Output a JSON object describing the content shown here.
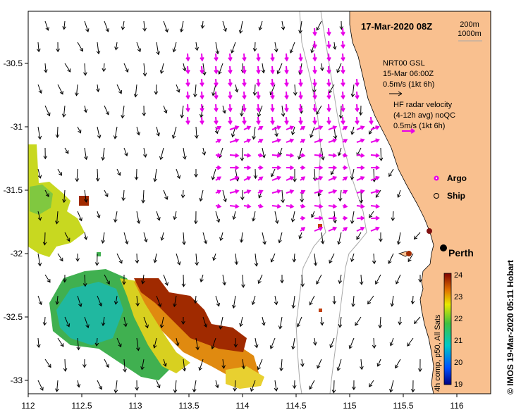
{
  "map": {
    "date_title": "17-Mar-2020 08Z",
    "isobath_legend": [
      "200m",
      "1000m"
    ],
    "model_legend": [
      "NRT00 GSL",
      "15-Mar 06:00Z",
      "0.5m/s (1kt 6h)"
    ],
    "radar_legend": [
      "HF radar velocity",
      "(4-12h avg) noQC",
      "0.5m/s (1kt 6h)"
    ],
    "argo_label": "Argo",
    "ship_label": "Ship",
    "place_label": "Perth",
    "credit": "©  IMOS 19-Mar-2020 05:11 Hobart",
    "colorbar_caption": "4h comp, p50, All Sats",
    "colorbar_ticks": [
      "24",
      "23",
      "22",
      "21",
      "20",
      "19"
    ],
    "x_ticks": [
      "112",
      "112.5",
      "113",
      "113.5",
      "114",
      "114.5",
      "115",
      "115.5",
      "116"
    ],
    "y_ticks": [
      "-30.5",
      "-31",
      "-31.5",
      "-32",
      "-32.5",
      "-33"
    ],
    "colors": {
      "land": "#F9C08F",
      "radar_arrow": "#E800E8",
      "model_arrow": "#000000",
      "isobath": "#A8A8A8"
    }
  }
}
